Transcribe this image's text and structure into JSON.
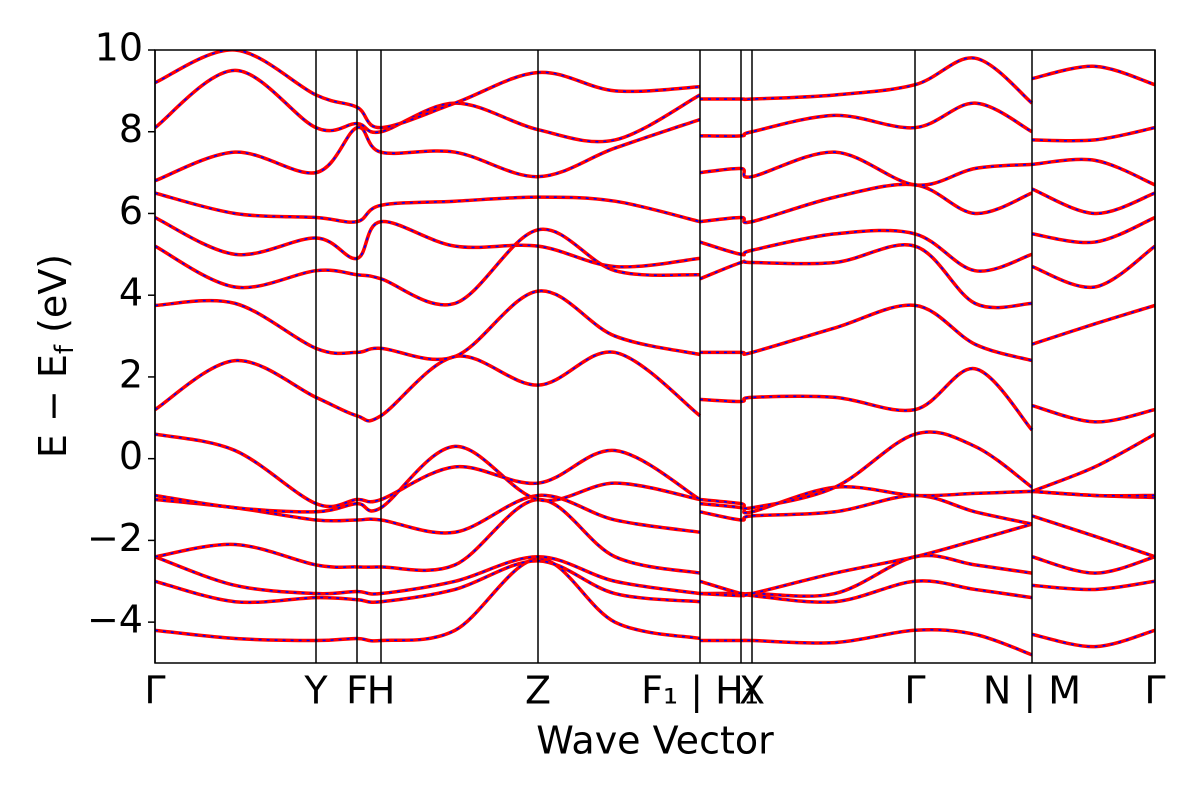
{
  "chart_data": {
    "type": "band-structure",
    "xlabel": "Wave Vector",
    "ylabel": [
      "E − E",
      "f",
      " (eV)"
    ],
    "xlim": [
      0,
      10
    ],
    "ylim": [
      -5,
      10
    ],
    "yticks": [
      {
        "value": -4,
        "label": "−4"
      },
      {
        "value": -2,
        "label": "−2"
      },
      0,
      2,
      4,
      6,
      8,
      10
    ],
    "xticks": [
      0,
      1.61,
      2.02,
      2.26,
      3.83,
      5.45,
      5.86,
      5.97,
      7.6,
      8.77,
      10
    ],
    "xtick_labels": [
      "Γ",
      "Y",
      "F",
      "H",
      "Z",
      "F₁ | H₁",
      null,
      "X",
      "Γ",
      "N | M",
      "Γ"
    ],
    "colors": [
      "#ff0000",
      "#0000ff"
    ],
    "x": [
      0,
      0.8,
      1.61,
      2.02,
      2.26,
      3.0,
      3.83,
      4.6,
      5.45,
      5.45,
      5.86,
      5.97,
      6.8,
      7.6,
      8.2,
      8.77,
      8.77,
      9.4,
      10
    ],
    "bands": [
      [
        -4.2,
        -4.4,
        -4.45,
        -4.4,
        -4.45,
        -4.2,
        -2.45,
        -4.0,
        -4.4,
        -4.45,
        -4.45,
        -4.45,
        -4.5,
        -4.2,
        -4.3,
        -4.8,
        -4.3,
        -4.6,
        -4.2
      ],
      [
        -3.0,
        -3.5,
        -3.4,
        -3.45,
        -3.5,
        -3.2,
        -2.5,
        -3.3,
        -3.5,
        -3.3,
        -3.3,
        -3.35,
        -3.5,
        -3.0,
        -3.2,
        -3.4,
        -3.1,
        -3.2,
        -3.0
      ],
      [
        -2.4,
        -3.1,
        -3.3,
        -3.25,
        -3.3,
        -3.0,
        -2.4,
        -3.0,
        -3.3,
        -3.3,
        -3.35,
        -3.3,
        -3.3,
        -2.4,
        -2.6,
        -2.8,
        -2.4,
        -2.8,
        -2.4
      ],
      [
        -2.4,
        -2.1,
        -2.6,
        -2.65,
        -2.65,
        -2.6,
        -1.0,
        -2.4,
        -2.8,
        -3.0,
        -3.3,
        -3.3,
        -2.8,
        -2.4,
        -2.0,
        -1.6,
        -1.4,
        -1.9,
        -2.4
      ],
      [
        -1.0,
        -1.2,
        -1.5,
        -1.5,
        -1.5,
        -1.8,
        -0.9,
        -1.5,
        -1.8,
        -1.3,
        -1.5,
        -1.4,
        -1.3,
        -0.9,
        -1.3,
        -1.6,
        -0.8,
        -0.9,
        -0.95
      ],
      [
        -0.9,
        -1.2,
        -1.3,
        -1.1,
        -1.2,
        0.3,
        -1.0,
        -0.6,
        -1.0,
        -1.1,
        -1.2,
        -1.3,
        -0.7,
        -0.9,
        -0.85,
        -0.8,
        -0.8,
        -0.9,
        -0.9
      ],
      [
        0.6,
        0.2,
        -1.1,
        -1.0,
        -1.0,
        -0.2,
        -0.6,
        0.2,
        -1.0,
        -1.0,
        -1.1,
        -1.2,
        -0.7,
        0.6,
        0.3,
        -0.7,
        -0.8,
        -0.2,
        0.6
      ],
      [
        1.2,
        2.4,
        1.5,
        1.05,
        1.05,
        2.5,
        1.8,
        2.6,
        1.05,
        1.45,
        1.4,
        1.5,
        1.5,
        1.2,
        2.2,
        0.7,
        1.3,
        0.9,
        1.2
      ],
      [
        3.75,
        3.8,
        2.7,
        2.6,
        2.7,
        2.5,
        4.1,
        3.0,
        2.55,
        2.6,
        2.6,
        2.6,
        3.2,
        3.75,
        2.8,
        2.4,
        2.8,
        3.3,
        3.75
      ],
      [
        5.2,
        4.2,
        4.6,
        4.5,
        4.4,
        3.8,
        5.6,
        4.6,
        4.5,
        4.4,
        4.8,
        4.8,
        4.8,
        5.2,
        3.8,
        3.8,
        4.7,
        4.2,
        5.2
      ],
      [
        5.9,
        5.0,
        5.4,
        4.9,
        5.8,
        5.2,
        5.2,
        4.7,
        4.9,
        5.3,
        5.0,
        5.1,
        5.5,
        5.5,
        4.6,
        5.0,
        5.5,
        5.3,
        5.9
      ],
      [
        6.5,
        6.0,
        5.9,
        5.8,
        6.2,
        6.3,
        6.4,
        6.3,
        5.8,
        5.8,
        5.9,
        5.8,
        6.4,
        6.7,
        6.0,
        6.5,
        6.6,
        6.0,
        6.5
      ],
      [
        6.8,
        7.5,
        7.0,
        8.1,
        7.5,
        7.5,
        6.9,
        7.6,
        8.3,
        7.0,
        7.1,
        6.9,
        7.5,
        6.7,
        7.1,
        7.2,
        7.2,
        7.3,
        6.7
      ],
      [
        8.1,
        9.5,
        8.1,
        8.2,
        8.0,
        8.7,
        8.05,
        7.8,
        8.9,
        7.9,
        7.9,
        8.0,
        8.4,
        8.1,
        8.7,
        8.0,
        7.8,
        7.8,
        8.1
      ],
      [
        9.2,
        10.0,
        8.9,
        8.6,
        8.1,
        8.7,
        9.45,
        9.0,
        9.1,
        8.8,
        8.8,
        8.8,
        8.9,
        9.15,
        9.8,
        8.7,
        9.3,
        9.6,
        9.15
      ]
    ]
  }
}
